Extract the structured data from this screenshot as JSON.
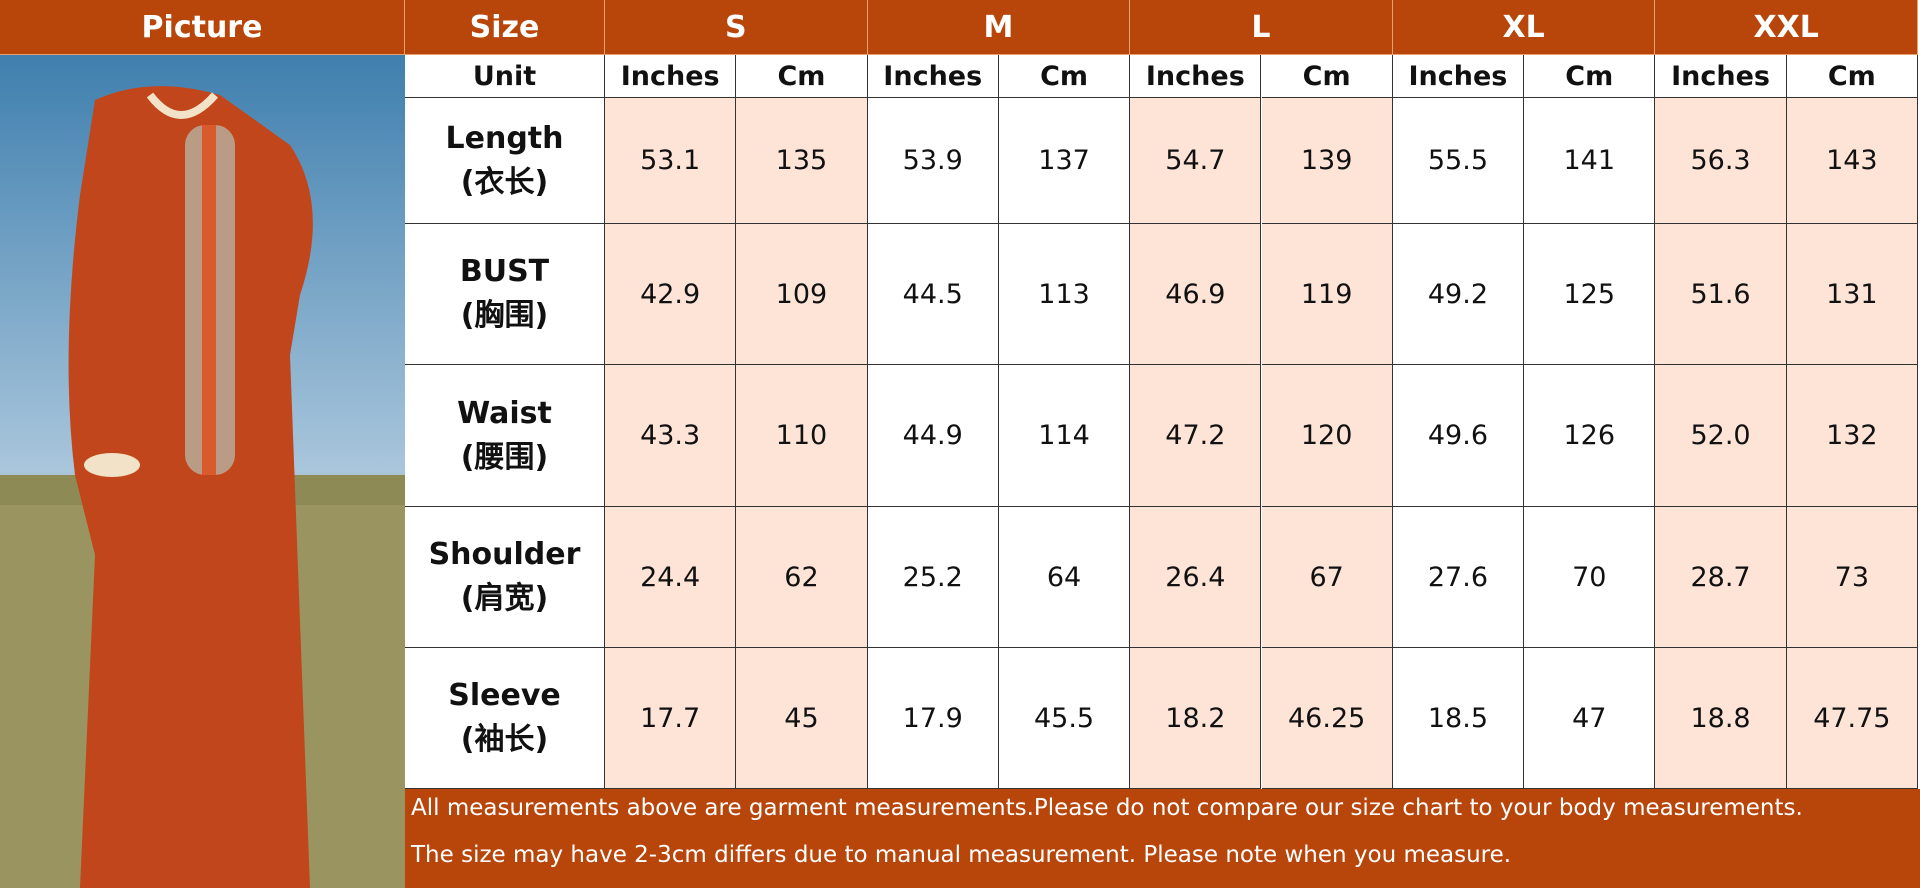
{
  "header": [
    "Picture",
    "Size",
    "S",
    "M",
    "L",
    "XL",
    "XXL"
  ],
  "unit_label": "Unit",
  "units": [
    "Inches",
    "Cm",
    "Inches",
    "Cm",
    "Inches",
    "Cm",
    "Inches",
    "Cm",
    "Inches",
    "Cm"
  ],
  "rows": [
    {
      "label": "Length",
      "label_cn": "(衣长)",
      "values": [
        "53.1",
        "135",
        "53.9",
        "137",
        "54.7",
        "139",
        "55.5",
        "141",
        "56.3",
        "143"
      ]
    },
    {
      "label": "BUST",
      "label_cn": "(胸围)",
      "values": [
        "42.9",
        "109",
        "44.5",
        "113",
        "46.9",
        "119",
        "49.2",
        "125",
        "51.6",
        "131"
      ]
    },
    {
      "label": "Waist",
      "label_cn": "(腰围)",
      "values": [
        "43.3",
        "110",
        "44.9",
        "114",
        "47.2",
        "120",
        "49.6",
        "126",
        "52.0",
        "132"
      ]
    },
    {
      "label": "Shoulder",
      "label_cn": "(肩宽)",
      "values": [
        "24.4",
        "62",
        "25.2",
        "64",
        "26.4",
        "67",
        "27.6",
        "70",
        "28.7",
        "73"
      ]
    },
    {
      "label": "Sleeve",
      "label_cn": "(袖长)",
      "values": [
        "17.7",
        "45",
        "17.9",
        "45.5",
        "18.2",
        "46.25",
        "18.5",
        "47",
        "18.8",
        "47.75"
      ]
    }
  ],
  "notes": [
    "All measurements above are garment measurements.Please do not compare our size chart to your body measurements.",
    "The size may have 2-3cm differs due to manual measurement. Please note when you measure."
  ]
}
